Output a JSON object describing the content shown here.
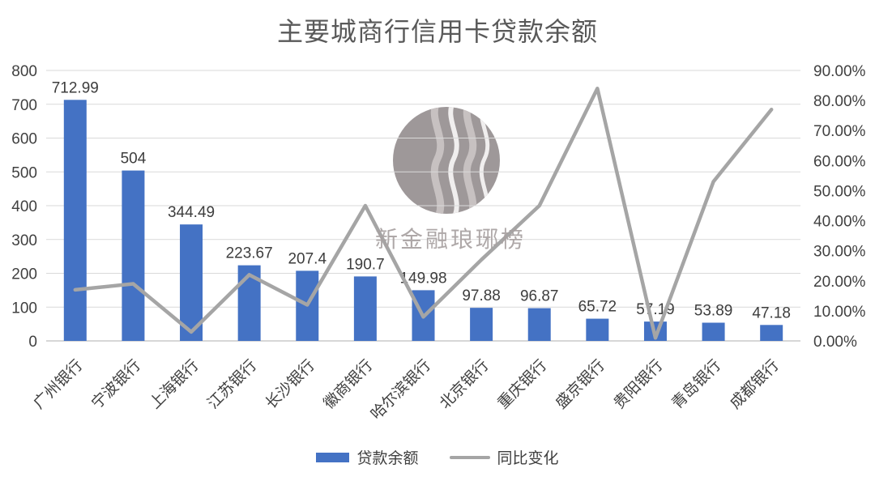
{
  "title": "主要城商行信用卡贷款余额",
  "watermark": {
    "text": "新金融琅琊榜"
  },
  "colors": {
    "bar": "#4472C4",
    "line": "#A5A5A5",
    "grid": "#D9D9D9",
    "axis_line": "#BFBFBF",
    "title": "#595959",
    "labels": "#404040",
    "watermark_circle": "#999293",
    "watermark_wave_gray": "#C7C1C1",
    "watermark_wave_white": "#F0EEEE",
    "watermark_text": "#A8A1A1"
  },
  "chart_data": {
    "type": "combo",
    "title": "主要城商行信用卡贷款余额",
    "categories": [
      "广州银行",
      "宁波银行",
      "上海银行",
      "江苏银行",
      "长沙银行",
      "徽商银行",
      "哈尔滨银行",
      "北京银行",
      "重庆银行",
      "盛京银行",
      "贵阳银行",
      "青岛银行",
      "成都银行"
    ],
    "series": [
      {
        "name": "贷款余额",
        "type": "bar",
        "axis": "left",
        "color": "#4472C4",
        "values": [
          712.99,
          504,
          344.49,
          223.67,
          207.4,
          190.7,
          149.98,
          97.88,
          96.87,
          65.72,
          57.19,
          53.89,
          47.18
        ],
        "data_labels": [
          "712.99",
          "504",
          "344.49",
          "223.67",
          "207.4",
          "190.7",
          "149.98",
          "97.88",
          "96.87",
          "65.72",
          "57.19",
          "53.89",
          "47.18"
        ]
      },
      {
        "name": "同比变化",
        "type": "line",
        "axis": "right",
        "color": "#A5A5A5",
        "values_percent": [
          17,
          19,
          3,
          22,
          12,
          45,
          8,
          27,
          45,
          84,
          1,
          53,
          77
        ]
      }
    ],
    "left_axis": {
      "min": 0,
      "max": 800,
      "step": 100
    },
    "right_axis": {
      "min": 0,
      "max": 90,
      "step": 10,
      "format": "percent_2dp"
    },
    "grid": true,
    "legend_position": "bottom"
  }
}
